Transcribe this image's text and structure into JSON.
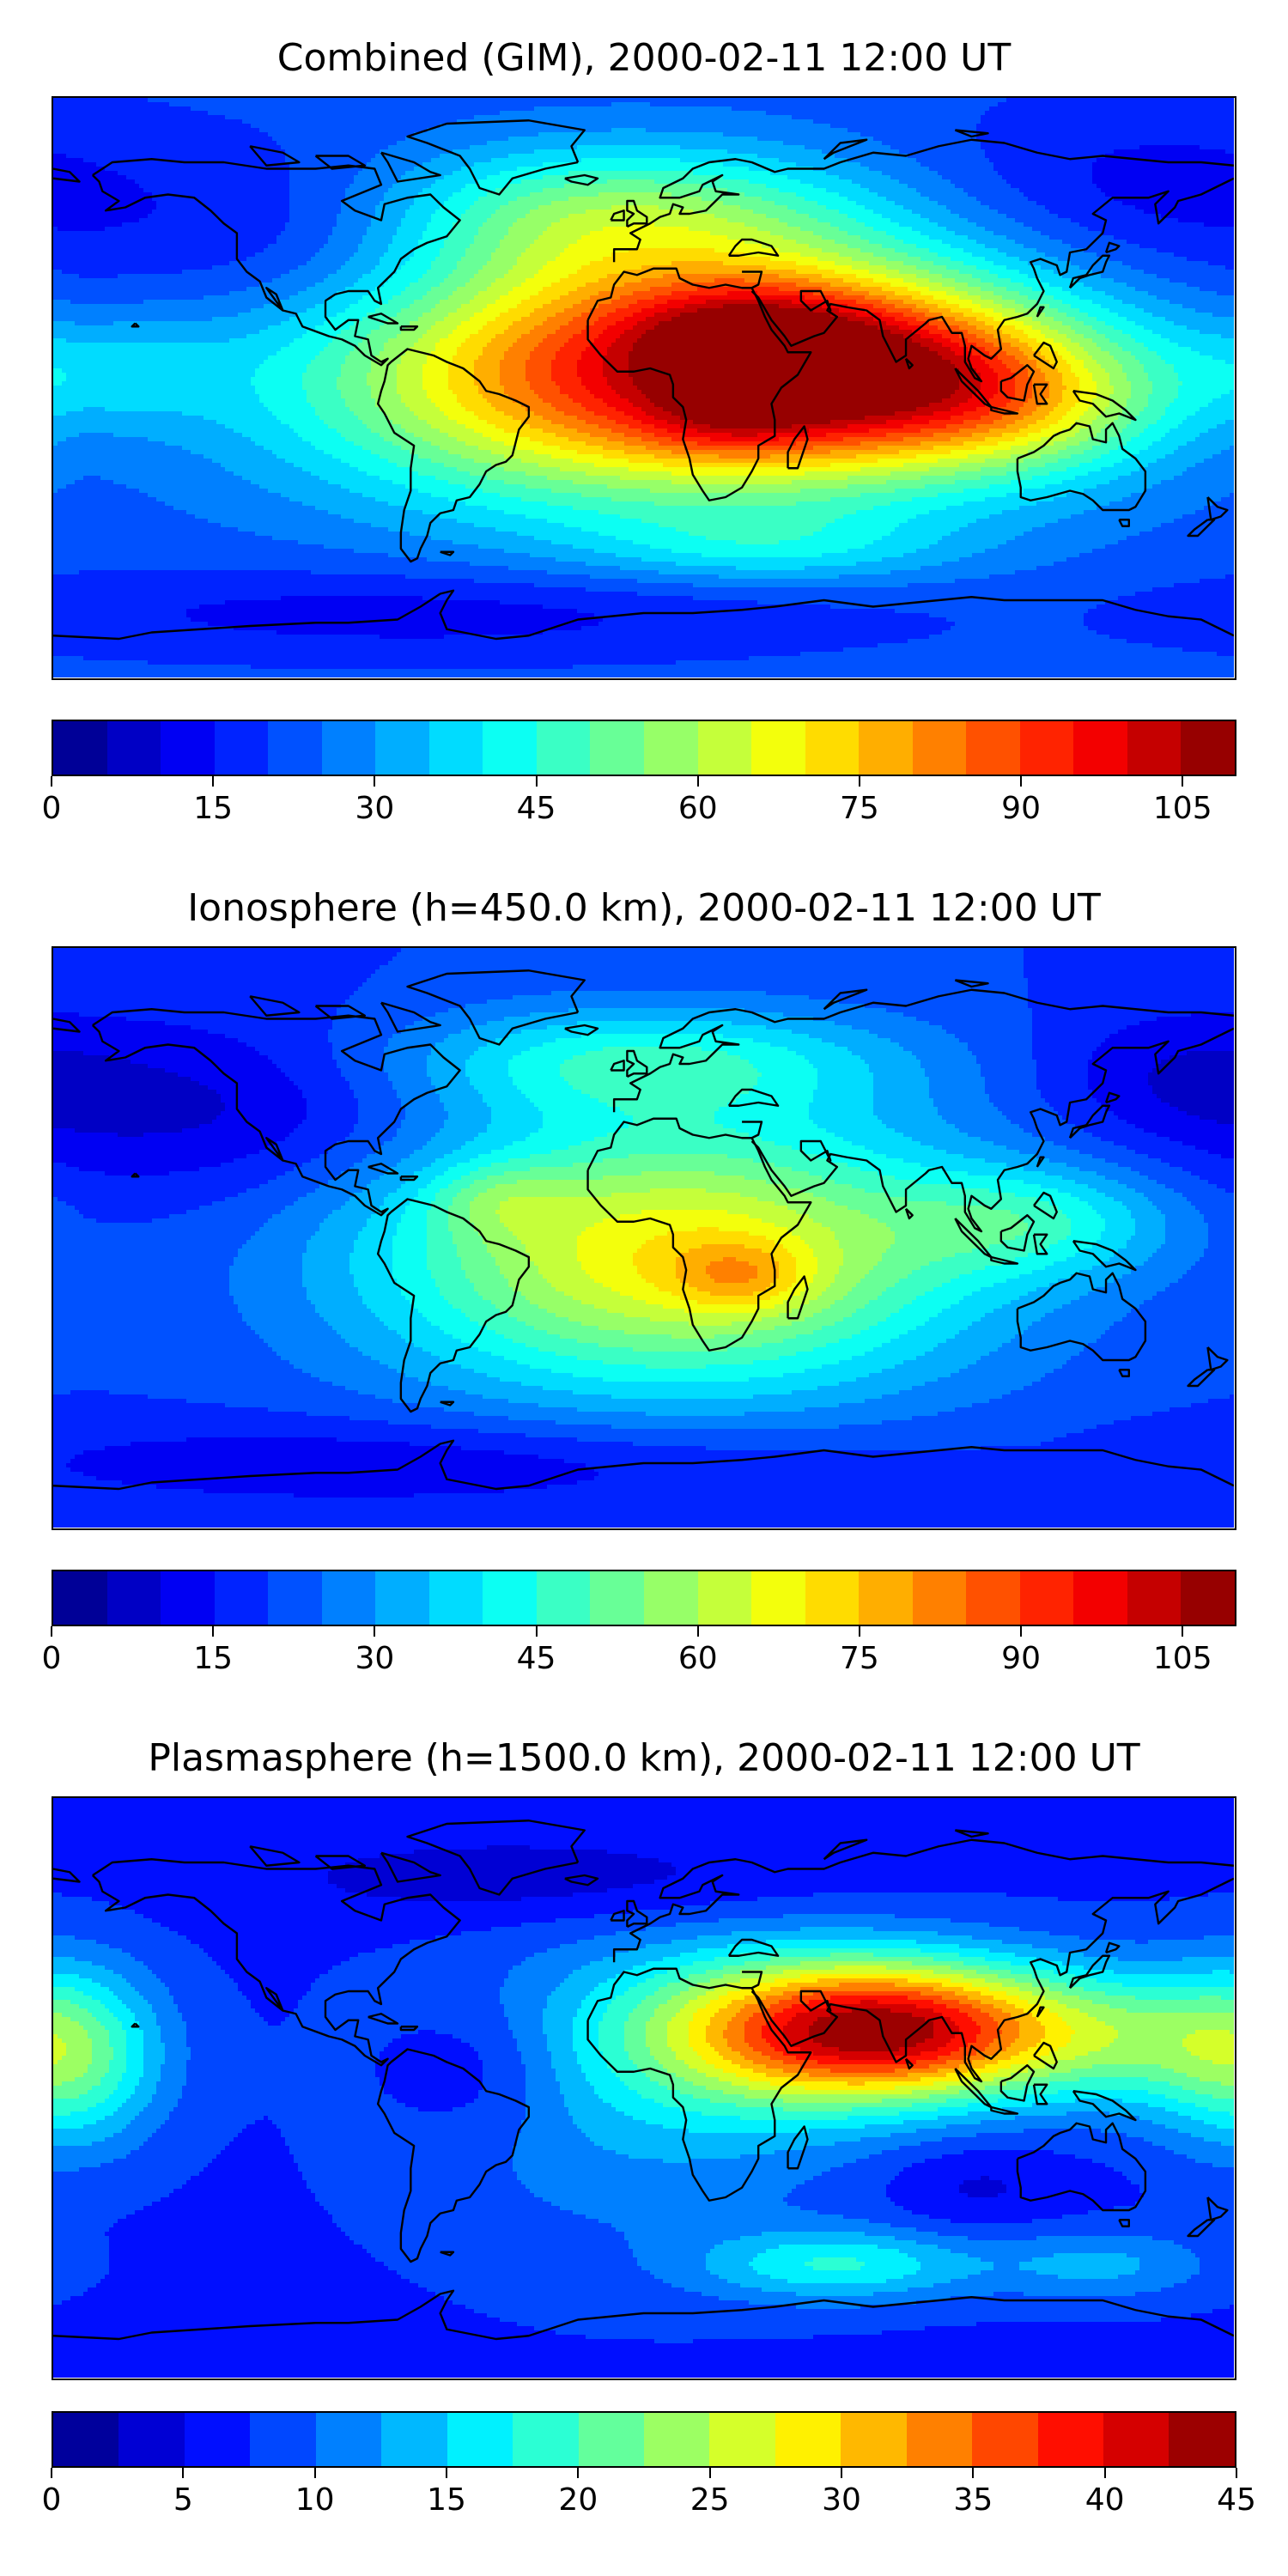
{
  "panels": [
    {
      "title": "Combined (GIM), 2000-02-11 12:00 UT",
      "colorbar": {
        "min": 0,
        "max": 110,
        "levels": 22,
        "ticks": [
          0,
          15,
          30,
          45,
          60,
          75,
          90,
          105
        ],
        "tick_labels": [
          "0",
          "15",
          "30",
          "45",
          "60",
          "75",
          "90",
          "105"
        ]
      },
      "field": {
        "base": 22,
        "blobs": [
          {
            "lon": 10,
            "lat": 5,
            "amp": 75,
            "slon": 75,
            "slat": 28
          },
          {
            "lon": 70,
            "lat": 5,
            "amp": 40,
            "slon": 40,
            "slat": 18
          },
          {
            "lon": 30,
            "lat": 20,
            "amp": 15,
            "slon": 25,
            "slat": 10
          },
          {
            "lon": 25,
            "lat": -10,
            "amp": 10,
            "slon": 18,
            "slat": 8
          },
          {
            "lon": -10,
            "lat": 55,
            "amp": 25,
            "slon": 55,
            "slat": 15
          },
          {
            "lon": 120,
            "lat": -5,
            "amp": 20,
            "slon": 30,
            "slat": 15
          },
          {
            "lon": -165,
            "lat": 5,
            "amp": 12,
            "slon": 25,
            "slat": 12
          },
          {
            "lon": -100,
            "lat": 45,
            "amp": -12,
            "slon": 40,
            "slat": 20
          },
          {
            "lon": 150,
            "lat": 60,
            "amp": -10,
            "slon": 50,
            "slat": 20
          },
          {
            "lon": -60,
            "lat": -70,
            "amp": -10,
            "slon": 100,
            "slat": 10
          },
          {
            "lon": 40,
            "lat": -50,
            "amp": 12,
            "slon": 40,
            "slat": 8
          }
        ]
      }
    },
    {
      "title": "Ionosphere  (h=450.0 km), 2000-02-11 12:00 UT",
      "colorbar": {
        "min": 0,
        "max": 110,
        "levels": 22,
        "ticks": [
          0,
          15,
          30,
          45,
          60,
          75,
          90,
          105
        ],
        "tick_labels": [
          "0",
          "15",
          "30",
          "45",
          "60",
          "75",
          "90",
          "105"
        ]
      },
      "field": {
        "base": 20,
        "blobs": [
          {
            "lon": 10,
            "lat": -5,
            "amp": 50,
            "slon": 65,
            "slat": 30
          },
          {
            "lon": 30,
            "lat": -12,
            "amp": 15,
            "slon": 15,
            "slat": 8
          },
          {
            "lon": -45,
            "lat": 12,
            "amp": 10,
            "slon": 15,
            "slat": 8
          },
          {
            "lon": 0,
            "lat": 55,
            "amp": 22,
            "slon": 55,
            "slat": 12
          },
          {
            "lon": 120,
            "lat": 5,
            "amp": 18,
            "slon": 30,
            "slat": 12
          },
          {
            "lon": -130,
            "lat": 40,
            "amp": -12,
            "slon": 50,
            "slat": 20
          },
          {
            "lon": 160,
            "lat": 50,
            "amp": -8,
            "slon": 30,
            "slat": 15
          },
          {
            "lon": -60,
            "lat": -70,
            "amp": -10,
            "slon": 100,
            "slat": 10
          }
        ]
      }
    },
    {
      "title": "Plasmasphere (h=1500.0 km), 2000-02-11 12:00 UT",
      "colorbar": {
        "min": 0,
        "max": 45,
        "levels": 18,
        "ticks": [
          0,
          5,
          10,
          15,
          20,
          25,
          30,
          35,
          40,
          45
        ],
        "tick_labels": [
          "0",
          "5",
          "10",
          "15",
          "20",
          "25",
          "30",
          "35",
          "40",
          "45"
        ]
      },
      "field": {
        "base": 7,
        "blobs": [
          {
            "lon": 80,
            "lat": 18,
            "amp": 30,
            "slon": 40,
            "slat": 15
          },
          {
            "lon": 40,
            "lat": 18,
            "amp": 10,
            "slon": 40,
            "slat": 18
          },
          {
            "lon": -175,
            "lat": 10,
            "amp": 14,
            "slon": 20,
            "slat": 20
          },
          {
            "lon": 0,
            "lat": 0,
            "amp": 6,
            "slon": 50,
            "slat": 35
          },
          {
            "lon": 150,
            "lat": 15,
            "amp": 8,
            "slon": 25,
            "slat": 15
          },
          {
            "lon": 60,
            "lat": -55,
            "amp": 10,
            "slon": 30,
            "slat": 8
          },
          {
            "lon": 140,
            "lat": -55,
            "amp": 6,
            "slon": 25,
            "slat": 8
          },
          {
            "lon": -50,
            "lat": 5,
            "amp": -4,
            "slon": 20,
            "slat": 15
          },
          {
            "lon": -30,
            "lat": 65,
            "amp": -4,
            "slon": 60,
            "slat": 10
          },
          {
            "lon": 100,
            "lat": -30,
            "amp": -3,
            "slon": 20,
            "slat": 10
          }
        ]
      }
    }
  ]
}
